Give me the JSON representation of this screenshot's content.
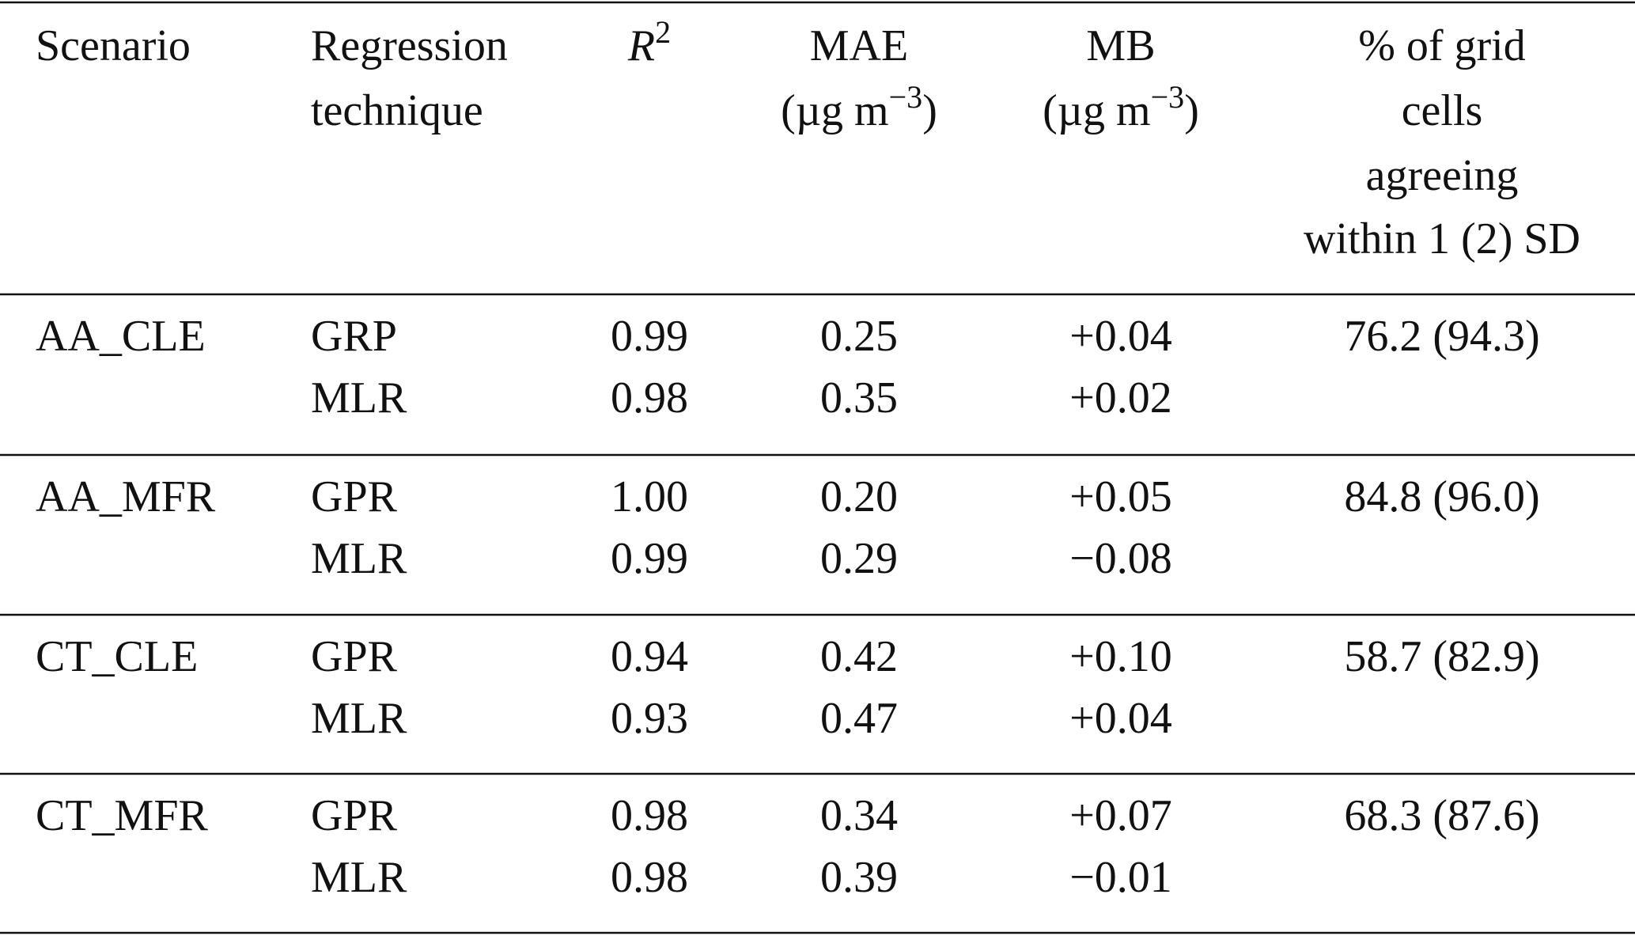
{
  "table": {
    "headers": [
      {
        "lines": [
          "Scenario"
        ]
      },
      {
        "lines": [
          "Regression",
          "technique"
        ]
      },
      {
        "base": "R",
        "sup": "2"
      },
      {
        "lines": [
          "MAE"
        ],
        "unit": {
          "base": "(µg m",
          "sup": "−3",
          "end": ")"
        }
      },
      {
        "lines": [
          "MB"
        ],
        "unit": {
          "base": "(µg m",
          "sup": "−3",
          "end": ")"
        }
      },
      {
        "lines": [
          "% of grid",
          "cells",
          "agreeing",
          "within 1 (2) SD"
        ]
      }
    ],
    "groups": [
      {
        "scenario": "AA_CLE",
        "agreement": "76.2 (94.3)",
        "rows": [
          [
            "GRP",
            "0.99",
            "0.25",
            "+0.04"
          ],
          [
            "MLR",
            "0.98",
            "0.35",
            "+0.02"
          ]
        ]
      },
      {
        "scenario": "AA_MFR",
        "agreement": "84.8 (96.0)",
        "rows": [
          [
            "GPR",
            "1.00",
            "0.20",
            "+0.05"
          ],
          [
            "MLR",
            "0.99",
            "0.29",
            "−0.08"
          ]
        ]
      },
      {
        "scenario": "CT_CLE",
        "agreement": "58.7 (82.9)",
        "rows": [
          [
            "GPR",
            "0.94",
            "0.42",
            "+0.10"
          ],
          [
            "MLR",
            "0.93",
            "0.47",
            "+0.04"
          ]
        ]
      },
      {
        "scenario": "CT_MFR",
        "agreement": "68.3 (87.6)",
        "rows": [
          [
            "GPR",
            "0.98",
            "0.34",
            "+0.07"
          ],
          [
            "MLR",
            "0.98",
            "0.39",
            "−0.01"
          ]
        ]
      }
    ]
  }
}
